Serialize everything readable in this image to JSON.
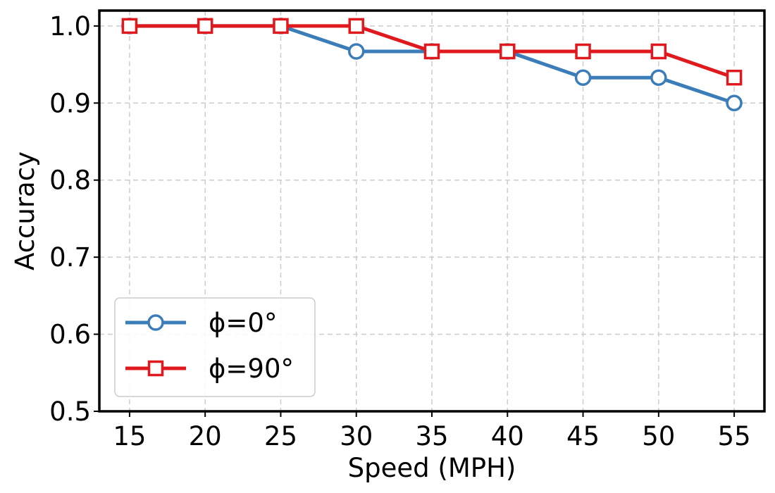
{
  "chart_data": {
    "type": "line",
    "xlabel": "Speed (MPH)",
    "ylabel": "Accuracy",
    "x": [
      15,
      20,
      25,
      30,
      35,
      40,
      45,
      50,
      55
    ],
    "xticks": [
      "15",
      "20",
      "25",
      "30",
      "35",
      "40",
      "45",
      "50",
      "55"
    ],
    "yticks": [
      "0.5",
      "0.6",
      "0.7",
      "0.8",
      "0.9",
      "1.0"
    ],
    "xlim": [
      13,
      57
    ],
    "ylim": [
      0.5,
      1.02
    ],
    "grid": true,
    "legend": "bottom-left",
    "series": [
      {
        "name": "ϕ=0°",
        "marker": "circle",
        "color": "#3a7db8",
        "values": [
          1.0,
          1.0,
          1.0,
          0.967,
          0.967,
          0.967,
          0.933,
          0.933,
          0.9
        ]
      },
      {
        "name": "ϕ=90°",
        "marker": "square",
        "color": "#e0191f",
        "values": [
          1.0,
          1.0,
          1.0,
          1.0,
          0.967,
          0.967,
          0.967,
          0.967,
          0.933
        ]
      }
    ]
  }
}
